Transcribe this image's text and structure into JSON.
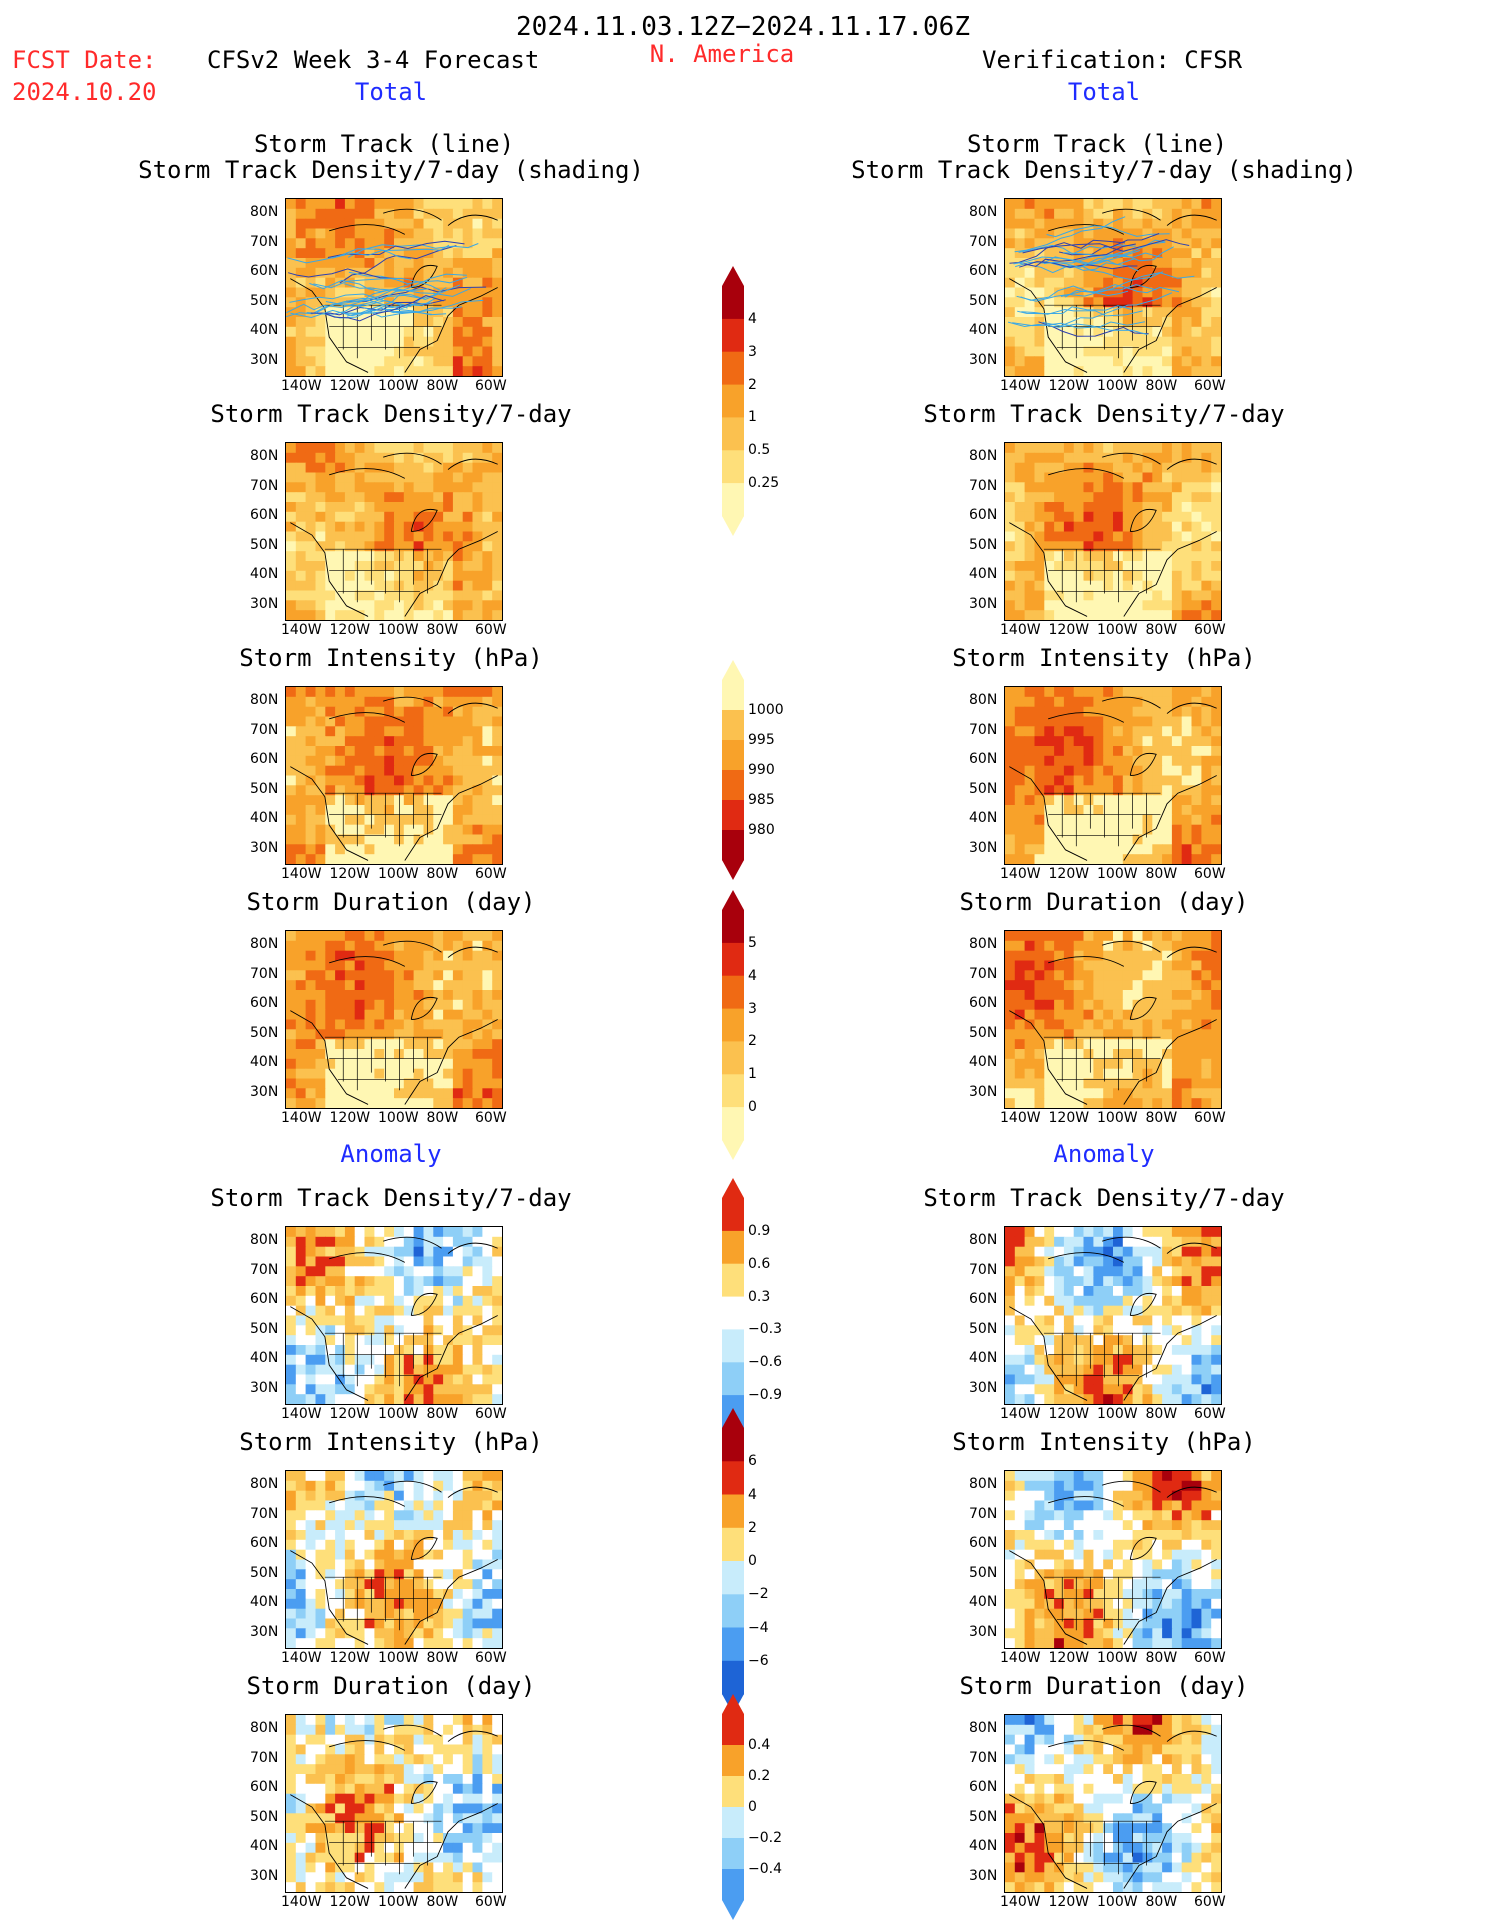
{
  "header": {
    "period": "2024.11.03.12Z−2024.11.17.06Z",
    "fcst_label": "FCST Date:",
    "fcst_date": "2024.10.20",
    "model_title": "CFSv2 Week 3-4 Forecast",
    "region": "N. America",
    "verification": "Verification: CFSR",
    "left_total": "Total",
    "right_total": "Total",
    "left_anomaly": "Anomaly",
    "right_anomaly": "Anomaly"
  },
  "panel_titles": {
    "storm_track_line": "Storm Track (line)",
    "storm_track_shading": "Storm Track Density/7-day (shading)",
    "density": "Storm Track Density/7-day",
    "intensity": "Storm Intensity (hPa)",
    "duration": "Storm Duration (day)"
  },
  "axes": {
    "lat_labels": [
      "80N",
      "70N",
      "60N",
      "50N",
      "40N",
      "30N"
    ],
    "lon_labels": [
      "140W",
      "120W",
      "100W",
      "80W",
      "60W"
    ]
  },
  "colorbars": {
    "density_total": [
      "4",
      "3",
      "2",
      "1",
      "0.5",
      "0.25"
    ],
    "intensity_total": [
      "1000",
      "995",
      "990",
      "985",
      "980"
    ],
    "duration_total": [
      "5",
      "4",
      "3",
      "2",
      "1",
      "0"
    ],
    "density_anom": [
      "0.9",
      "0.6",
      "0.3",
      "−0.3",
      "−0.6",
      "−0.9"
    ],
    "intensity_anom": [
      "6",
      "4",
      "2",
      "0",
      "−2",
      "−4",
      "−6"
    ],
    "duration_anom": [
      "0.4",
      "0.2",
      "0",
      "−0.2",
      "−0.4"
    ]
  },
  "colors": {
    "light_yellow": "#fff7b3",
    "yellow": "#fedf7a",
    "light_orange": "#fbc14f",
    "orange": "#f8a22a",
    "dark_orange": "#f06a14",
    "red": "#e02a12",
    "dark_red": "#a8000c",
    "pale_blue": "#c8ecfb",
    "light_blue": "#8ecff7",
    "mid_blue": "#4b9df1",
    "blue": "#1e64d6",
    "track_line": "#3aa8e6"
  }
}
